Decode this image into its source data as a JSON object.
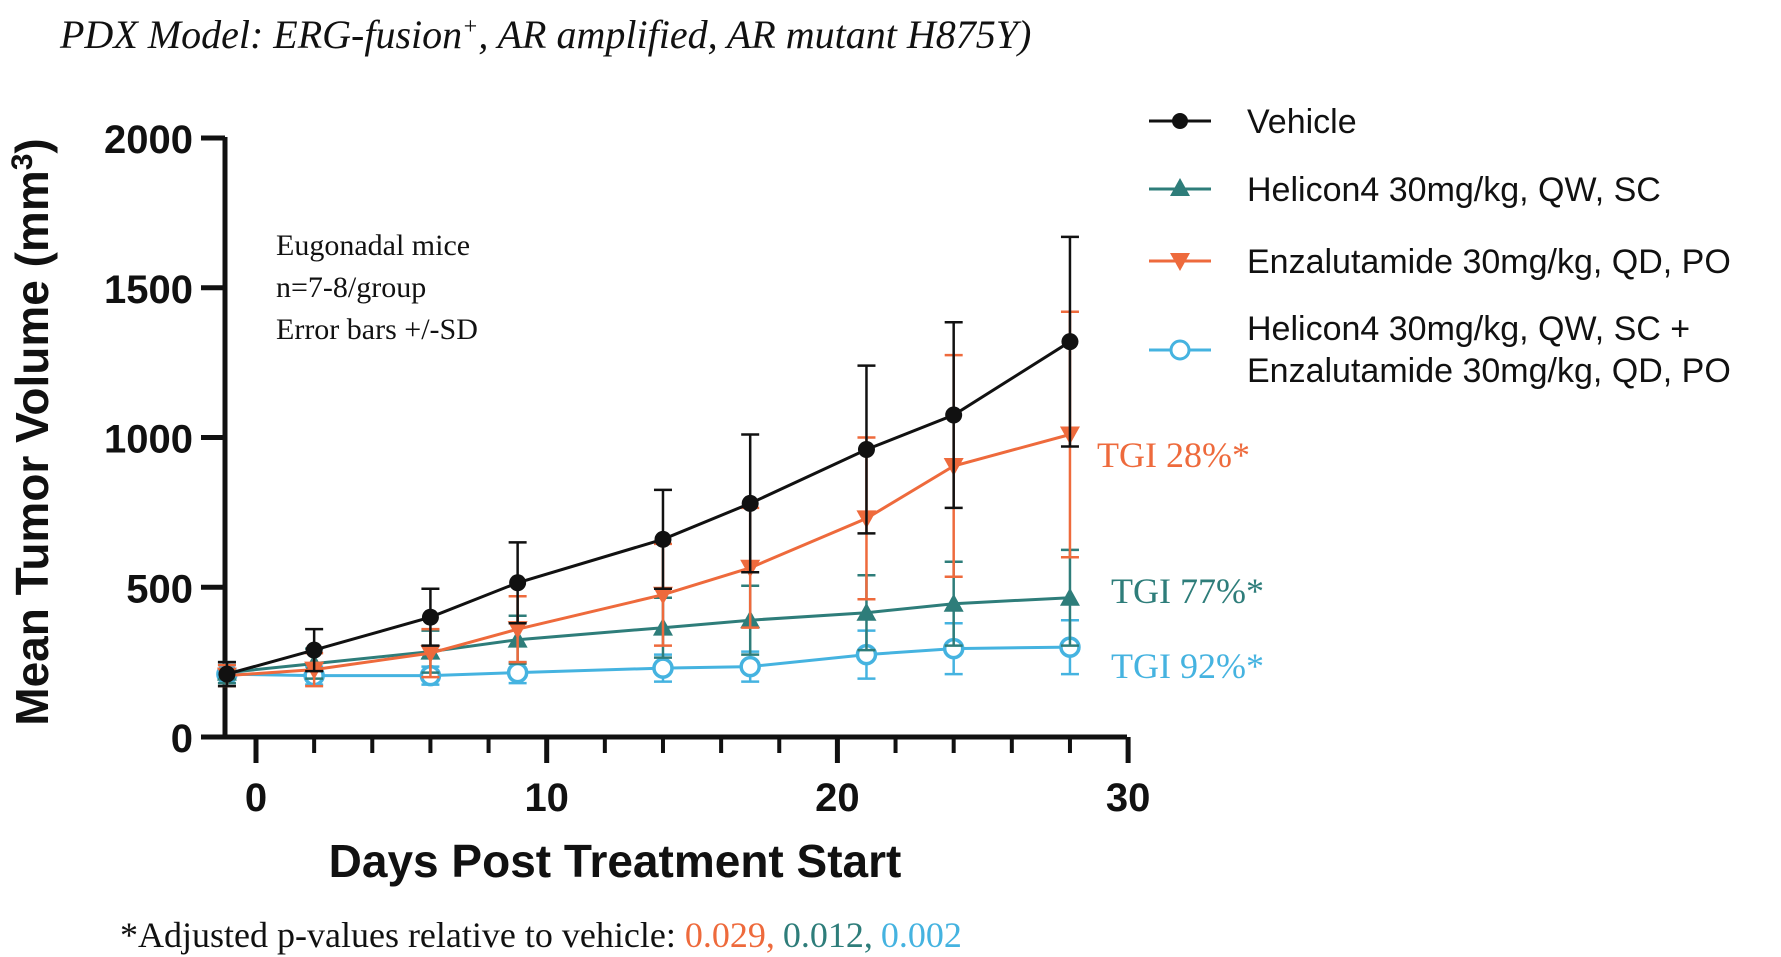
{
  "header": {
    "title_prefix": "PDX Model: ERG-fusion",
    "title_sup": "+",
    "title_rest": ", AR amplified, AR mutant H875Y)"
  },
  "footer": {
    "prefix": "*Adjusted p-values relative to vehicle: ",
    "p_enzalutamide": "0.029,",
    "p_helicon4": "0.012,",
    "p_combo": "0.002"
  },
  "colors": {
    "vehicle": "#111111",
    "helicon4": "#2e7d7a",
    "enzalutamide": "#ee6a3c",
    "combo": "#45b3e0"
  },
  "chart_data": {
    "type": "line",
    "xlabel": "Days Post Treatment Start",
    "ylabel_prefix": "Mean Tumor Volume (mm",
    "ylabel_sup": "3",
    "ylabel_suffix": ")",
    "xlim": [
      -1,
      30
    ],
    "ylim": [
      0,
      2000
    ],
    "x_ticks": [
      0,
      10,
      20,
      30
    ],
    "y_ticks": [
      0,
      500,
      1000,
      1500,
      2000
    ],
    "x": [
      -1,
      2,
      6,
      9,
      14,
      17,
      21,
      24,
      28
    ],
    "annotation_lines": [
      "Eugonadal mice",
      "n=7-8/group",
      "Error bars +/-SD"
    ],
    "legend_position": "top-right",
    "series": [
      {
        "key": "vehicle",
        "name": "Vehicle",
        "marker": "circle",
        "values": [
          210,
          290,
          400,
          515,
          660,
          780,
          960,
          1075,
          1320
        ],
        "sd": [
          40,
          70,
          95,
          135,
          165,
          230,
          280,
          310,
          350
        ],
        "tgi_label": ""
      },
      {
        "key": "helicon4",
        "name": "Helicon4 30mg/kg, QW, SC",
        "marker": "triangle-up",
        "values": [
          215,
          245,
          285,
          325,
          365,
          390,
          415,
          445,
          465
        ],
        "sd": [
          35,
          50,
          70,
          80,
          100,
          115,
          125,
          140,
          160
        ],
        "tgi_label": "TGI 77%*"
      },
      {
        "key": "enzalutamide",
        "name": "Enzalutamide 30mg/kg, QD, PO",
        "marker": "triangle-down",
        "values": [
          205,
          225,
          280,
          360,
          475,
          565,
          730,
          905,
          1010
        ],
        "sd": [
          35,
          55,
          80,
          110,
          170,
          200,
          270,
          370,
          410
        ],
        "tgi_label": "TGI 28%*"
      },
      {
        "key": "combo",
        "name": "Helicon4 30mg/kg, QW, SC +",
        "name_line2": "Enzalutamide 30mg/kg, QD, PO",
        "marker": "open-circle",
        "values": [
          210,
          205,
          205,
          215,
          230,
          235,
          275,
          295,
          300
        ],
        "sd": [
          30,
          30,
          30,
          35,
          45,
          50,
          80,
          85,
          90
        ],
        "tgi_label": "TGI 92%*"
      }
    ]
  }
}
